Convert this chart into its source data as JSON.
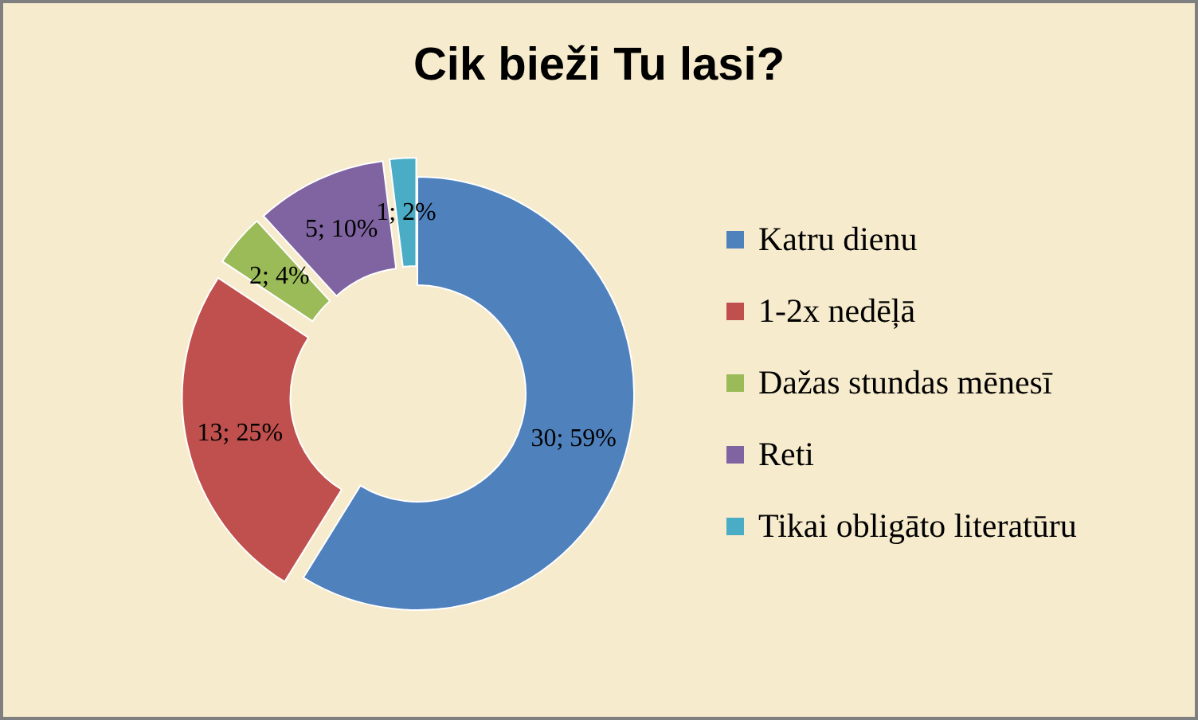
{
  "chart_data": {
    "type": "donut",
    "title": "Cik bieži Tu lasi?",
    "categories": [
      "Katru dienu",
      "1-2x nedēļā",
      "Dažas stundas mēnesī",
      "Reti",
      "Tikai obligāto literatūru"
    ],
    "values": [
      30,
      13,
      2,
      5,
      1
    ],
    "colors": [
      "#4f81bd",
      "#c0504d",
      "#9bbb59",
      "#8064a2",
      "#4bacc6"
    ],
    "value_labels": [
      "30; 59%",
      "13; 25%",
      "2; 4%",
      "5; 10%",
      "1; 2%"
    ],
    "legend": "right"
  }
}
